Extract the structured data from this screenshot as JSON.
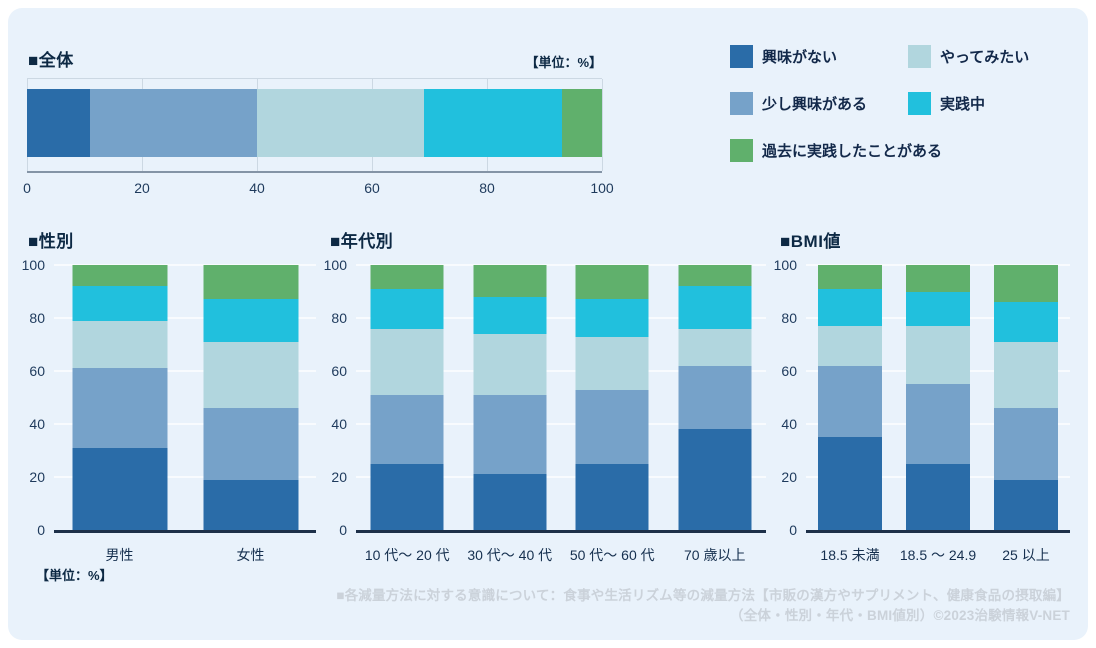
{
  "colors": {
    "panel_bg": "#e9f2fb",
    "title_text": "#0d2944",
    "axis_text": "#1e3a5c",
    "baseline": "#1d3049",
    "gridline_vertical_chart": "#f8fbfe",
    "gridline_horizontal_chart": "#ccd8e3",
    "footer_text": "#cbd2da",
    "series": {
      "interest_none": "#2a6ca8",
      "slight_interest": "#76a2c9",
      "want_to_try": "#b1d6de",
      "practicing": "#21c0dd",
      "practiced_in_past": "#60b06c"
    }
  },
  "legend": {
    "items": [
      {
        "label": "興味がない",
        "color": "#2a6ca8",
        "wide": false
      },
      {
        "label": "やってみたい",
        "color": "#b1d6de",
        "wide": false
      },
      {
        "label": "少し興味がある",
        "color": "#76a2c9",
        "wide": false
      },
      {
        "label": "実践中",
        "color": "#21c0dd",
        "wide": false
      },
      {
        "label": "過去に実践したことがある",
        "color": "#60b06c",
        "wide": true
      }
    ]
  },
  "charts": {
    "overall": {
      "title": "■全体",
      "unit_label": "【単位：%】"
    },
    "gender": {
      "title": "■性別",
      "unit_label": "【単位：%】"
    },
    "age": {
      "title": "■年代別"
    },
    "bmi": {
      "title": "■BMI値"
    }
  },
  "footer": {
    "line1": "■各減量方法に対する意識について：食事や生活リズム等の減量方法【市販の漢方やサプリメント、健康食品の摂取編】",
    "line2": "（全体・性別・年代・BMI値別）©2023治験情報V-NET"
  },
  "chart_data": [
    {
      "type": "bar",
      "subtype": "horizontal-stacked",
      "title": "■全体",
      "unit": "%",
      "categories": [
        "全体"
      ],
      "xlim": [
        0,
        100
      ],
      "xticks": [
        0,
        20,
        40,
        60,
        80,
        100
      ],
      "grid": true,
      "series": [
        {
          "name": "興味がない",
          "color": "#2a6ca8",
          "values": [
            11
          ]
        },
        {
          "name": "少し興味がある",
          "color": "#76a2c9",
          "values": [
            29
          ]
        },
        {
          "name": "やってみたい",
          "color": "#b1d6de",
          "values": [
            29
          ]
        },
        {
          "name": "実践中",
          "color": "#21c0dd",
          "values": [
            24
          ]
        },
        {
          "name": "過去に実践したことがある",
          "color": "#60b06c",
          "values": [
            7
          ]
        }
      ]
    },
    {
      "type": "bar",
      "subtype": "vertical-stacked",
      "title": "■性別",
      "unit": "%",
      "categories": [
        "男性",
        "女性"
      ],
      "ylim": [
        0,
        100
      ],
      "yticks": [
        0,
        20,
        40,
        60,
        80,
        100
      ],
      "grid": true,
      "series": [
        {
          "name": "興味がない",
          "color": "#2a6ca8",
          "values": [
            31,
            19
          ]
        },
        {
          "name": "少し興味がある",
          "color": "#76a2c9",
          "values": [
            30,
            27
          ]
        },
        {
          "name": "やってみたい",
          "color": "#b1d6de",
          "values": [
            18,
            25
          ]
        },
        {
          "name": "実践中",
          "color": "#21c0dd",
          "values": [
            13,
            16
          ]
        },
        {
          "name": "過去に実践したことがある",
          "color": "#60b06c",
          "values": [
            8,
            13
          ]
        }
      ]
    },
    {
      "type": "bar",
      "subtype": "vertical-stacked",
      "title": "■年代別",
      "unit": "%",
      "categories": [
        "10 代～ 20 代",
        "30 代～ 40 代",
        "50 代～ 60 代",
        "70 歳以上"
      ],
      "ylim": [
        0,
        100
      ],
      "yticks": [
        0,
        20,
        40,
        60,
        80,
        100
      ],
      "grid": true,
      "series": [
        {
          "name": "興味がない",
          "color": "#2a6ca8",
          "values": [
            25,
            21,
            25,
            38
          ]
        },
        {
          "name": "少し興味がある",
          "color": "#76a2c9",
          "values": [
            26,
            30,
            28,
            24
          ]
        },
        {
          "name": "やってみたい",
          "color": "#b1d6de",
          "values": [
            25,
            23,
            20,
            14
          ]
        },
        {
          "name": "実践中",
          "color": "#21c0dd",
          "values": [
            15,
            14,
            14,
            16
          ]
        },
        {
          "name": "過去に実践したことがある",
          "color": "#60b06c",
          "values": [
            9,
            12,
            13,
            8
          ]
        }
      ]
    },
    {
      "type": "bar",
      "subtype": "vertical-stacked",
      "title": "■BMI値",
      "unit": "%",
      "categories": [
        "18.5 未満",
        "18.5 ～ 24.9",
        "25 以上"
      ],
      "ylim": [
        0,
        100
      ],
      "yticks": [
        0,
        20,
        40,
        60,
        80,
        100
      ],
      "grid": true,
      "series": [
        {
          "name": "興味がない",
          "color": "#2a6ca8",
          "values": [
            35,
            25,
            19
          ]
        },
        {
          "name": "少し興味がある",
          "color": "#76a2c9",
          "values": [
            27,
            30,
            27
          ]
        },
        {
          "name": "やってみたい",
          "color": "#b1d6de",
          "values": [
            15,
            22,
            25
          ]
        },
        {
          "name": "実践中",
          "color": "#21c0dd",
          "values": [
            14,
            13,
            15
          ]
        },
        {
          "name": "過去に実践したことがある",
          "color": "#60b06c",
          "values": [
            9,
            10,
            14
          ]
        }
      ]
    }
  ]
}
